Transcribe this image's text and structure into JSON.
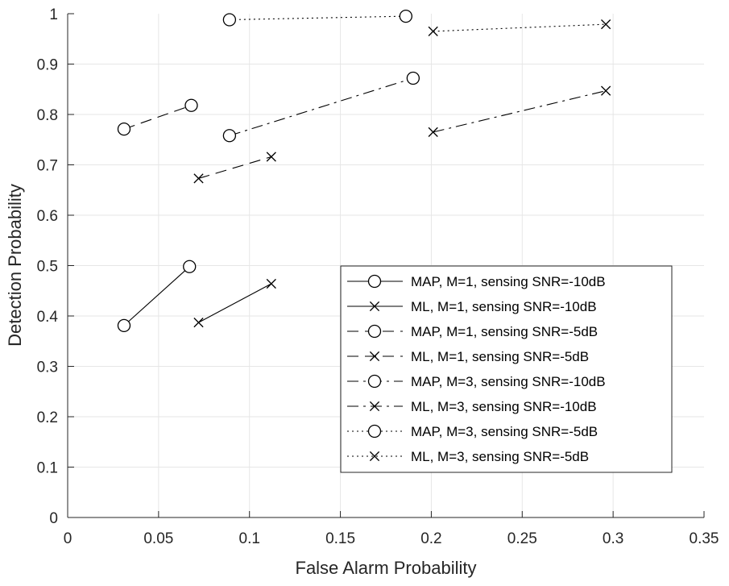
{
  "chart_data": {
    "type": "line",
    "title": "",
    "xlabel": "False Alarm Probability",
    "ylabel": "Detection Probability",
    "xlim": [
      0,
      0.35
    ],
    "ylim": [
      0,
      1
    ],
    "xticks": [
      0,
      0.05,
      0.1,
      0.15,
      0.2,
      0.25,
      0.3,
      0.35
    ],
    "xtick_labels": [
      "0",
      "0.05",
      "0.1",
      "0.15",
      "0.2",
      "0.25",
      "0.3",
      "0.35"
    ],
    "yticks": [
      0,
      0.1,
      0.2,
      0.3,
      0.4,
      0.5,
      0.6,
      0.7,
      0.8,
      0.9,
      1
    ],
    "ytick_labels": [
      "0",
      "0.1",
      "0.2",
      "0.3",
      "0.4",
      "0.5",
      "0.6",
      "0.7",
      "0.8",
      "0.9",
      "1"
    ],
    "grid": true,
    "legend_position": "lower-right",
    "series": [
      {
        "name": "MAP, M=1, sensing SNR=-10dB",
        "line": "solid",
        "marker": "circle",
        "x": [
          0.031,
          0.067
        ],
        "y": [
          0.381,
          0.498
        ]
      },
      {
        "name": "ML, M=1, sensing SNR=-10dB",
        "line": "solid",
        "marker": "x",
        "x": [
          0.072,
          0.112
        ],
        "y": [
          0.387,
          0.464
        ]
      },
      {
        "name": "MAP, M=1, sensing SNR=-5dB",
        "line": "dashed",
        "marker": "circle",
        "x": [
          0.031,
          0.068
        ],
        "y": [
          0.771,
          0.818
        ]
      },
      {
        "name": "ML, M=1, sensing SNR=-5dB",
        "line": "dashed",
        "marker": "x",
        "x": [
          0.072,
          0.112
        ],
        "y": [
          0.673,
          0.716
        ]
      },
      {
        "name": "MAP, M=3, sensing SNR=-10dB",
        "line": "dashdot",
        "marker": "circle",
        "x": [
          0.089,
          0.19
        ],
        "y": [
          0.758,
          0.872
        ]
      },
      {
        "name": "ML, M=3, sensing SNR=-10dB",
        "line": "dashdot",
        "marker": "x",
        "x": [
          0.201,
          0.296
        ],
        "y": [
          0.765,
          0.847
        ]
      },
      {
        "name": "MAP, M=3, sensing SNR=-5dB",
        "line": "dotted",
        "marker": "circle",
        "x": [
          0.089,
          0.186
        ],
        "y": [
          0.988,
          0.995
        ]
      },
      {
        "name": "ML, M=3, sensing SNR=-5dB",
        "line": "dotted",
        "marker": "x",
        "x": [
          0.201,
          0.296
        ],
        "y": [
          0.965,
          0.979
        ]
      }
    ]
  }
}
